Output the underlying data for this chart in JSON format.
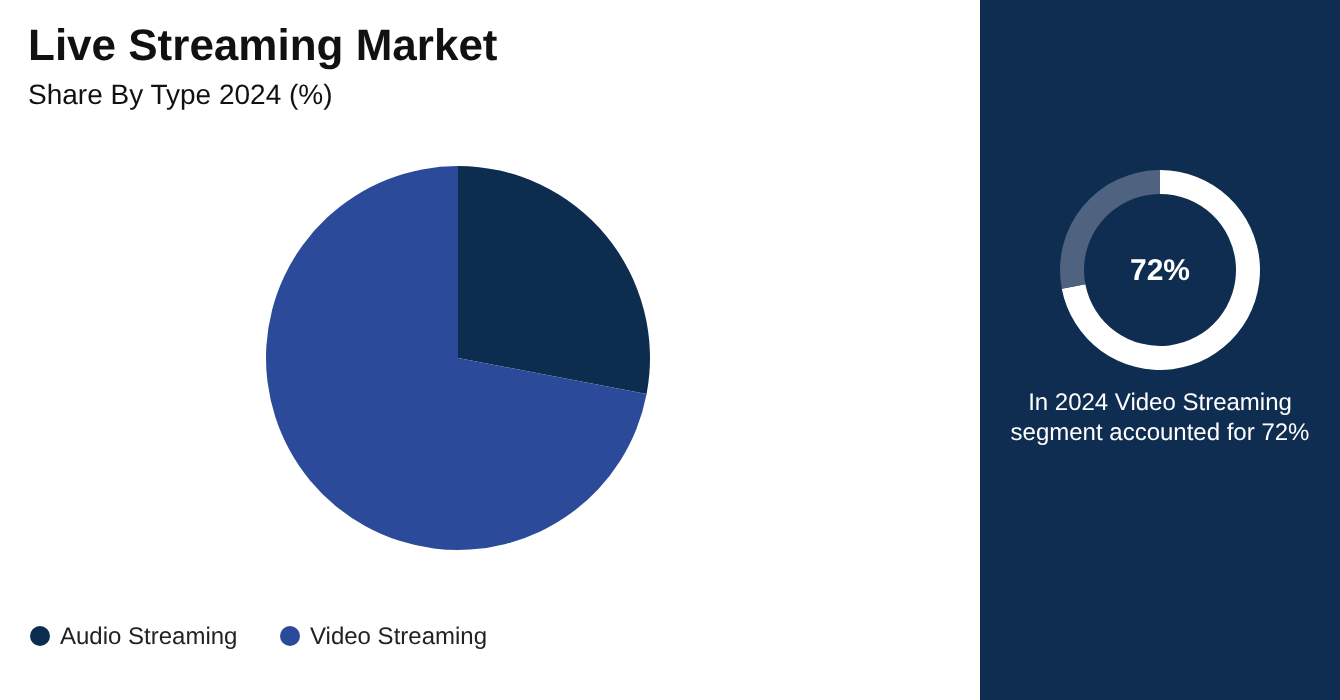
{
  "chart_data": [
    {
      "type": "pie",
      "title": "Live Streaming Market",
      "subtitle": "Share By Type 2024 (%)",
      "categories": [
        "Audio Streaming",
        "Video Streaming"
      ],
      "values": [
        28,
        72
      ],
      "colors": [
        "#0d2d4f",
        "#2c4a9a"
      ],
      "legend": "bottom"
    },
    {
      "type": "donut",
      "categories": [
        null,
        null
      ],
      "values": [
        72,
        28
      ],
      "colors": [
        "#ffffff",
        "#4f6380"
      ],
      "value_labels": [
        "72%",
        null
      ],
      "legend": false,
      "annotations": [
        "In 2024  Video Streaming segment accounted for 72%"
      ]
    }
  ]
}
